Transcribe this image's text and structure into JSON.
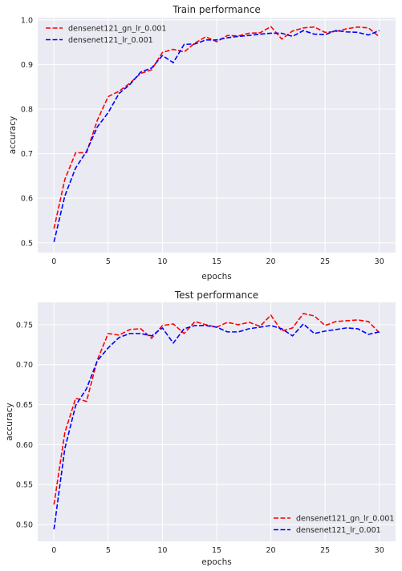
{
  "chart_data": [
    {
      "type": "line",
      "title": "Train performance",
      "xlabel": "epochs",
      "ylabel": "accuracy",
      "xlim": [
        -1.5,
        31.5
      ],
      "ylim": [
        0.478,
        1.005
      ],
      "xticks": [
        0,
        5,
        10,
        15,
        20,
        25,
        30
      ],
      "xtick_labels": [
        "0",
        "5",
        "10",
        "15",
        "20",
        "25",
        "30"
      ],
      "yticks": [
        0.5,
        0.6,
        0.7,
        0.8,
        0.9,
        1.0
      ],
      "ytick_labels": [
        "0.5",
        "0.6",
        "0.7",
        "0.8",
        "0.9",
        "1.0"
      ],
      "grid": true,
      "legend_position": "upper-left",
      "x": [
        0,
        1,
        2,
        3,
        4,
        5,
        6,
        7,
        8,
        9,
        10,
        11,
        12,
        13,
        14,
        15,
        16,
        17,
        18,
        19,
        20,
        21,
        22,
        23,
        24,
        25,
        26,
        27,
        28,
        29,
        30
      ],
      "series": [
        {
          "name": "densenet121_gn_lr_0.001",
          "color": "#ff0000",
          "values": [
            0.532,
            0.642,
            0.702,
            0.702,
            0.775,
            0.828,
            0.84,
            0.858,
            0.88,
            0.888,
            0.927,
            0.934,
            0.928,
            0.948,
            0.962,
            0.951,
            0.965,
            0.964,
            0.97,
            0.971,
            0.985,
            0.957,
            0.975,
            0.982,
            0.984,
            0.972,
            0.974,
            0.98,
            0.984,
            0.982,
            0.962
          ]
        },
        {
          "name": "densenet121_lr_0.001",
          "color": "#0000ff",
          "values": [
            0.502,
            0.605,
            0.668,
            0.705,
            0.76,
            0.792,
            0.835,
            0.855,
            0.883,
            0.892,
            0.92,
            0.904,
            0.945,
            0.946,
            0.955,
            0.955,
            0.96,
            0.963,
            0.965,
            0.968,
            0.97,
            0.97,
            0.963,
            0.976,
            0.968,
            0.967,
            0.976,
            0.973,
            0.972,
            0.966,
            0.976
          ]
        }
      ]
    },
    {
      "type": "line",
      "title": "Test performance",
      "xlabel": "epochs",
      "ylabel": "accuracy",
      "xlim": [
        -1.5,
        31.5
      ],
      "ylim": [
        0.479,
        0.778
      ],
      "xticks": [
        0,
        5,
        10,
        15,
        20,
        25,
        30
      ],
      "xtick_labels": [
        "0",
        "5",
        "10",
        "15",
        "20",
        "25",
        "30"
      ],
      "yticks": [
        0.5,
        0.55,
        0.6,
        0.65,
        0.7,
        0.75
      ],
      "ytick_labels": [
        "0.50",
        "0.55",
        "0.60",
        "0.65",
        "0.70",
        "0.75"
      ],
      "grid": true,
      "legend_position": "lower-right",
      "x": [
        0,
        1,
        2,
        3,
        4,
        5,
        6,
        7,
        8,
        9,
        10,
        11,
        12,
        13,
        14,
        15,
        16,
        17,
        18,
        19,
        20,
        21,
        22,
        23,
        24,
        25,
        26,
        27,
        28,
        29,
        30
      ],
      "series": [
        {
          "name": "densenet121_gn_lr_0.001",
          "color": "#ff0000",
          "values": [
            0.525,
            0.615,
            0.658,
            0.654,
            0.706,
            0.739,
            0.737,
            0.744,
            0.745,
            0.733,
            0.749,
            0.751,
            0.739,
            0.754,
            0.75,
            0.747,
            0.753,
            0.75,
            0.753,
            0.748,
            0.762,
            0.742,
            0.746,
            0.764,
            0.761,
            0.749,
            0.754,
            0.755,
            0.756,
            0.754,
            0.74
          ]
        },
        {
          "name": "densenet121_lr_0.001",
          "color": "#0000ff",
          "values": [
            0.494,
            0.595,
            0.649,
            0.67,
            0.705,
            0.721,
            0.734,
            0.739,
            0.739,
            0.736,
            0.746,
            0.727,
            0.745,
            0.749,
            0.749,
            0.747,
            0.741,
            0.741,
            0.745,
            0.747,
            0.749,
            0.745,
            0.736,
            0.751,
            0.739,
            0.742,
            0.744,
            0.746,
            0.745,
            0.738,
            0.741
          ]
        }
      ]
    }
  ]
}
